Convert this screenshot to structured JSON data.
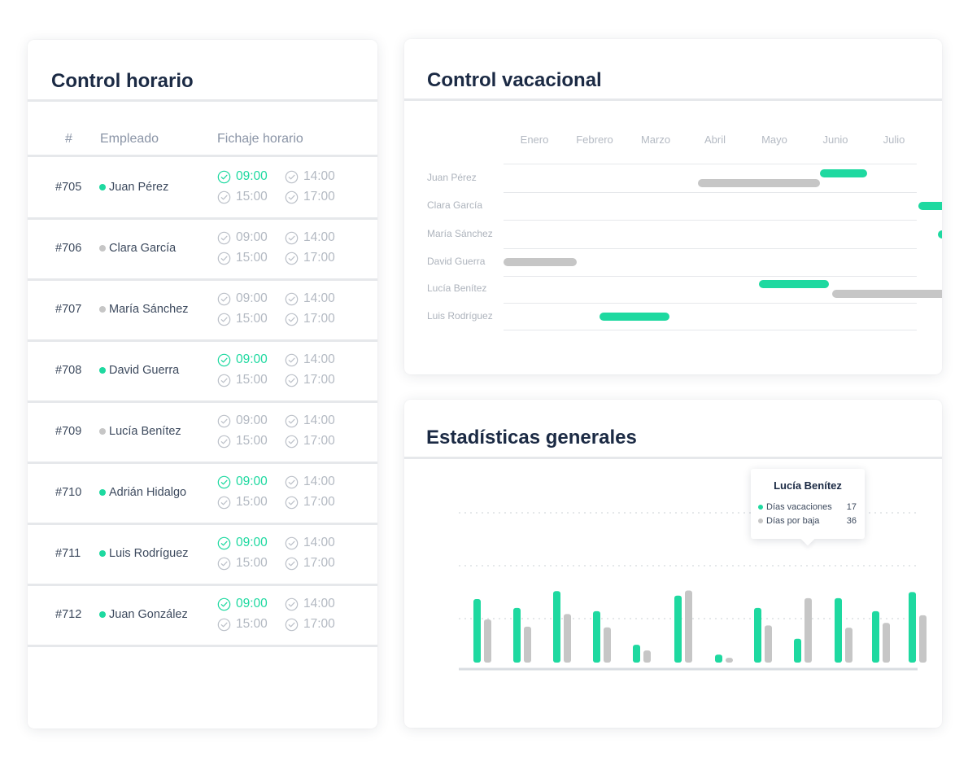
{
  "colors": {
    "active": "#1ed9a0",
    "inactive": "#c6c6c6",
    "title": "#1b2a44"
  },
  "control_horario": {
    "title": "Control horario",
    "headers": {
      "id": "#",
      "employee": "Empleado",
      "punch": "Fichaje horario"
    },
    "rows": [
      {
        "id": "#705",
        "name": "Juan Pérez",
        "active": true,
        "times": [
          "09:00",
          "14:00",
          "15:00",
          "17:00"
        ]
      },
      {
        "id": "#706",
        "name": "Clara García",
        "active": false,
        "times": [
          "09:00",
          "14:00",
          "15:00",
          "17:00"
        ]
      },
      {
        "id": "#707",
        "name": "María Sánchez",
        "active": false,
        "times": [
          "09:00",
          "14:00",
          "15:00",
          "17:00"
        ]
      },
      {
        "id": "#708",
        "name": "David Guerra",
        "active": true,
        "times": [
          "09:00",
          "14:00",
          "15:00",
          "17:00"
        ]
      },
      {
        "id": "#709",
        "name": "Lucía Benítez",
        "active": false,
        "times": [
          "09:00",
          "14:00",
          "15:00",
          "17:00"
        ]
      },
      {
        "id": "#710",
        "name": "Adrián Hidalgo",
        "active": true,
        "times": [
          "09:00",
          "14:00",
          "15:00",
          "17:00"
        ]
      },
      {
        "id": "#711",
        "name": "Luis Rodríguez",
        "active": true,
        "times": [
          "09:00",
          "14:00",
          "15:00",
          "17:00"
        ]
      },
      {
        "id": "#712",
        "name": "Juan González",
        "active": true,
        "times": [
          "09:00",
          "14:00",
          "15:00",
          "17:00"
        ]
      }
    ]
  },
  "control_vacacional": {
    "title": "Control vacacional",
    "months": [
      "Enero",
      "Febrero",
      "Marzo",
      "Abril",
      "Mayo",
      "Junio",
      "Julio"
    ],
    "employees": [
      {
        "name": "Juan Pérez",
        "bars": [
          {
            "start": 3.05,
            "end": 4.95,
            "type": "inactive"
          },
          {
            "start": 4.95,
            "end": 5.7,
            "type": "active"
          }
        ]
      },
      {
        "name": "Clara García",
        "bars": [
          {
            "start": 6.5,
            "end": 7.0,
            "type": "active"
          }
        ]
      },
      {
        "name": "María Sánchez",
        "bars": [
          {
            "start": 6.8,
            "end": 7.9,
            "type": "active"
          }
        ]
      },
      {
        "name": "David Guerra",
        "bars": [
          {
            "start": 0.0,
            "end": 1.15,
            "type": "inactive"
          }
        ]
      },
      {
        "name": "Lucía Benítez",
        "bars": [
          {
            "start": 4.0,
            "end": 5.1,
            "type": "active"
          },
          {
            "start": 5.15,
            "end": 7.05,
            "type": "inactive"
          }
        ]
      },
      {
        "name": "Luis Rodríguez",
        "bars": [
          {
            "start": 1.5,
            "end": 2.6,
            "type": "active"
          }
        ]
      }
    ]
  },
  "estadisticas": {
    "title": "Estadísticas generales",
    "tooltip": {
      "title": "Lucía Benítez",
      "rows": [
        {
          "label": "Días vacaciones",
          "value": "17"
        },
        {
          "label": "Días por baja",
          "value": "36"
        }
      ]
    },
    "chart_data": {
      "type": "bar",
      "ylim": [
        0,
        30
      ],
      "grid": true,
      "series": [
        {
          "values": [
            20,
            17.2,
            22.5,
            16.2,
            5.6,
            21.1,
            2.5,
            17.2,
            7.5,
            20.3,
            16.2,
            22.2
          ]
        },
        {
          "values": [
            13.6,
            11.3,
            15.3,
            11.1,
            3.8,
            22.7,
            1.5,
            11.7,
            20.3,
            11.0,
            12.5,
            14.9
          ]
        }
      ]
    }
  }
}
